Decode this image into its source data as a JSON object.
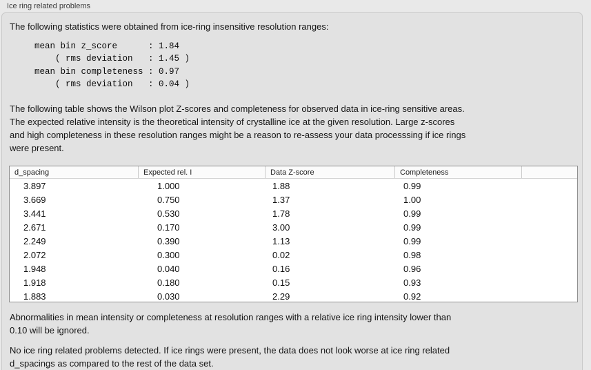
{
  "panel": {
    "title": "Ice ring related problems"
  },
  "intro": "The following statistics were obtained from ice-ring insensitive resolution ranges:",
  "stats_block": "mean bin z_score      : 1.84\n    ( rms deviation   : 1.45 )\nmean bin completeness : 0.97\n    ( rms deviation   : 0.04 )",
  "stats": {
    "mean_bin_z_score": "1.84",
    "z_score_rms_deviation": "1.45",
    "mean_bin_completeness": "0.97",
    "completeness_rms_deviation": "0.04"
  },
  "description": "The following table shows the Wilson plot Z-scores and completeness for observed data in ice-ring sensitive areas.\nThe expected relative intensity is the theoretical intensity of crystalline ice at the given resolution. Large z-scores\nand high completeness in these resolution ranges might be a reason to re-assess your data processsing if ice rings\nwere present.",
  "table": {
    "columns": [
      "d_spacing",
      "Expected rel. I",
      "Data Z-score",
      "Completeness"
    ],
    "rows": [
      [
        "3.897",
        "1.000",
        "1.88",
        "0.99"
      ],
      [
        "3.669",
        "0.750",
        "1.37",
        "1.00"
      ],
      [
        "3.441",
        "0.530",
        "1.78",
        "0.99"
      ],
      [
        "2.671",
        "0.170",
        "3.00",
        "0.99"
      ],
      [
        "2.249",
        "0.390",
        "1.13",
        "0.99"
      ],
      [
        "2.072",
        "0.300",
        "0.02",
        "0.98"
      ],
      [
        "1.948",
        "0.040",
        "0.16",
        "0.96"
      ],
      [
        "1.918",
        "0.180",
        "0.15",
        "0.93"
      ],
      [
        "1.883",
        "0.030",
        "2.29",
        "0.92"
      ]
    ]
  },
  "note_ignore": "Abnormalities in mean intensity or completeness at resolution ranges with a relative ice ring intensity lower than\n0.10 will be ignored.",
  "conclusion": "No ice ring related problems detected. If ice rings were present, the data does not look worse at ice ring related\nd_spacings as compared to the rest of the data set.",
  "colors": {
    "page_bg": "#e9e9e9",
    "panel_bg": "#e2e2e2",
    "panel_border": "#c9c9c9",
    "table_bg": "#ffffff",
    "table_border": "#8e8e8e",
    "text": "#161616"
  }
}
